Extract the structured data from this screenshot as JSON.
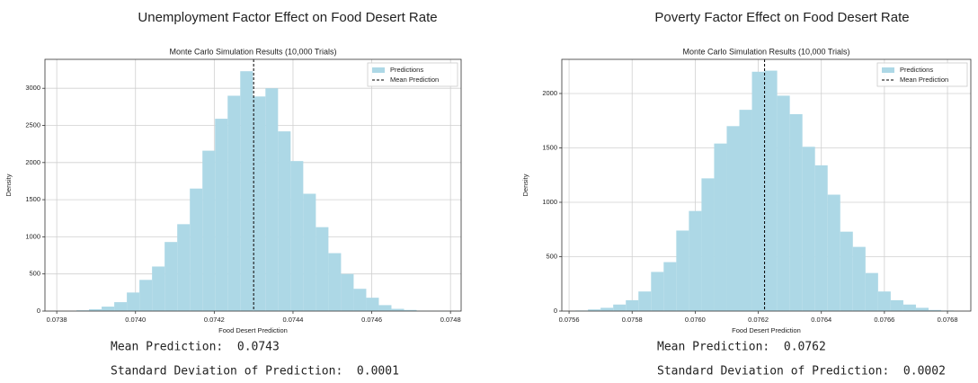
{
  "chart_data": [
    {
      "type": "histogram",
      "heading": "Unemployment Factor Effect on Food Desert Rate",
      "title": "Monte Carlo Simulation Results (10,000 Trials)",
      "x_label": "Food Desert Prediction",
      "y_label": "Density",
      "bins": [
        0.07385,
        0.073882,
        0.073914,
        0.073946,
        0.073978,
        0.07401,
        0.074042,
        0.074074,
        0.074106,
        0.074138,
        0.07417,
        0.074202,
        0.074234,
        0.074266,
        0.074298,
        0.07433,
        0.074362,
        0.074394,
        0.074426,
        0.074458,
        0.07449,
        0.074522,
        0.074554,
        0.074586,
        0.074618,
        0.07465,
        0.074682,
        0.074714,
        0.074746,
        0.074778,
        0.07481
      ],
      "series": [
        {
          "name": "Predictions",
          "color": "#add8e6",
          "values": [
            10,
            25,
            60,
            120,
            250,
            420,
            600,
            930,
            1170,
            1650,
            2160,
            2590,
            2900,
            3230,
            2890,
            3000,
            2420,
            2020,
            1580,
            1130,
            780,
            500,
            300,
            180,
            80,
            30,
            15,
            5,
            3,
            1
          ]
        }
      ],
      "mean_line": {
        "name": "Mean Prediction",
        "value": 0.0743,
        "color": "#000000"
      },
      "xlim": [
        0.07377,
        0.074827
      ],
      "ylim": [
        0,
        3390
      ],
      "xticks": [
        0.0738,
        {
          "value": 0.074,
          "label": "0.0740"
        },
        0.0742,
        0.0744,
        0.0746,
        0.0748
      ],
      "yticks": [
        0,
        500,
        1000,
        1500,
        2000,
        2500,
        3000
      ],
      "grid": true,
      "legend": "upper right"
    },
    {
      "type": "histogram",
      "heading": "Poverty Factor Effect on Food Desert Rate",
      "title": "Monte Carlo Simulation Results (10,000 Trials)",
      "x_label": "Food Desert Prediction",
      "y_label": "Density",
      "bins": [
        0.07562,
        0.07566,
        0.0757,
        0.07574,
        0.07578,
        0.07582,
        0.07586,
        0.0759,
        0.07594,
        0.07598,
        0.07602,
        0.07606,
        0.0761,
        0.07614,
        0.07618,
        0.07622,
        0.07626,
        0.0763,
        0.07634,
        0.07638,
        0.07642,
        0.07646,
        0.0765,
        0.07654,
        0.07658,
        0.07662,
        0.07666,
        0.0767,
        0.07674,
        0.07678,
        0.07682
      ],
      "series": [
        {
          "name": "Predictions",
          "color": "#add8e6",
          "values": [
            5,
            15,
            30,
            60,
            100,
            180,
            360,
            450,
            740,
            920,
            1220,
            1540,
            1700,
            1850,
            2200,
            2210,
            1980,
            1810,
            1510,
            1340,
            1070,
            730,
            590,
            350,
            180,
            100,
            60,
            30,
            10,
            5
          ]
        }
      ],
      "mean_line": {
        "name": "Mean Prediction",
        "value": 0.07622,
        "color": "#000000"
      },
      "xlim": [
        0.075577,
        0.076874
      ],
      "ylim": [
        0,
        2314
      ],
      "xticks": [
        0.0756,
        0.0758,
        {
          "value": 0.076,
          "label": "0.0760"
        },
        0.0762,
        0.0764,
        0.0766,
        0.0768
      ],
      "yticks": [
        0,
        500,
        1000,
        1500,
        2000
      ],
      "grid": true,
      "legend": "upper right"
    }
  ],
  "outputs": [
    {
      "lines": [
        "Mean Prediction:  0.0743",
        "Standard Deviation of Prediction:  0.0001"
      ]
    },
    {
      "lines": [
        "Mean Prediction:  0.0762",
        "Standard Deviation of Prediction:  0.0002"
      ]
    }
  ]
}
